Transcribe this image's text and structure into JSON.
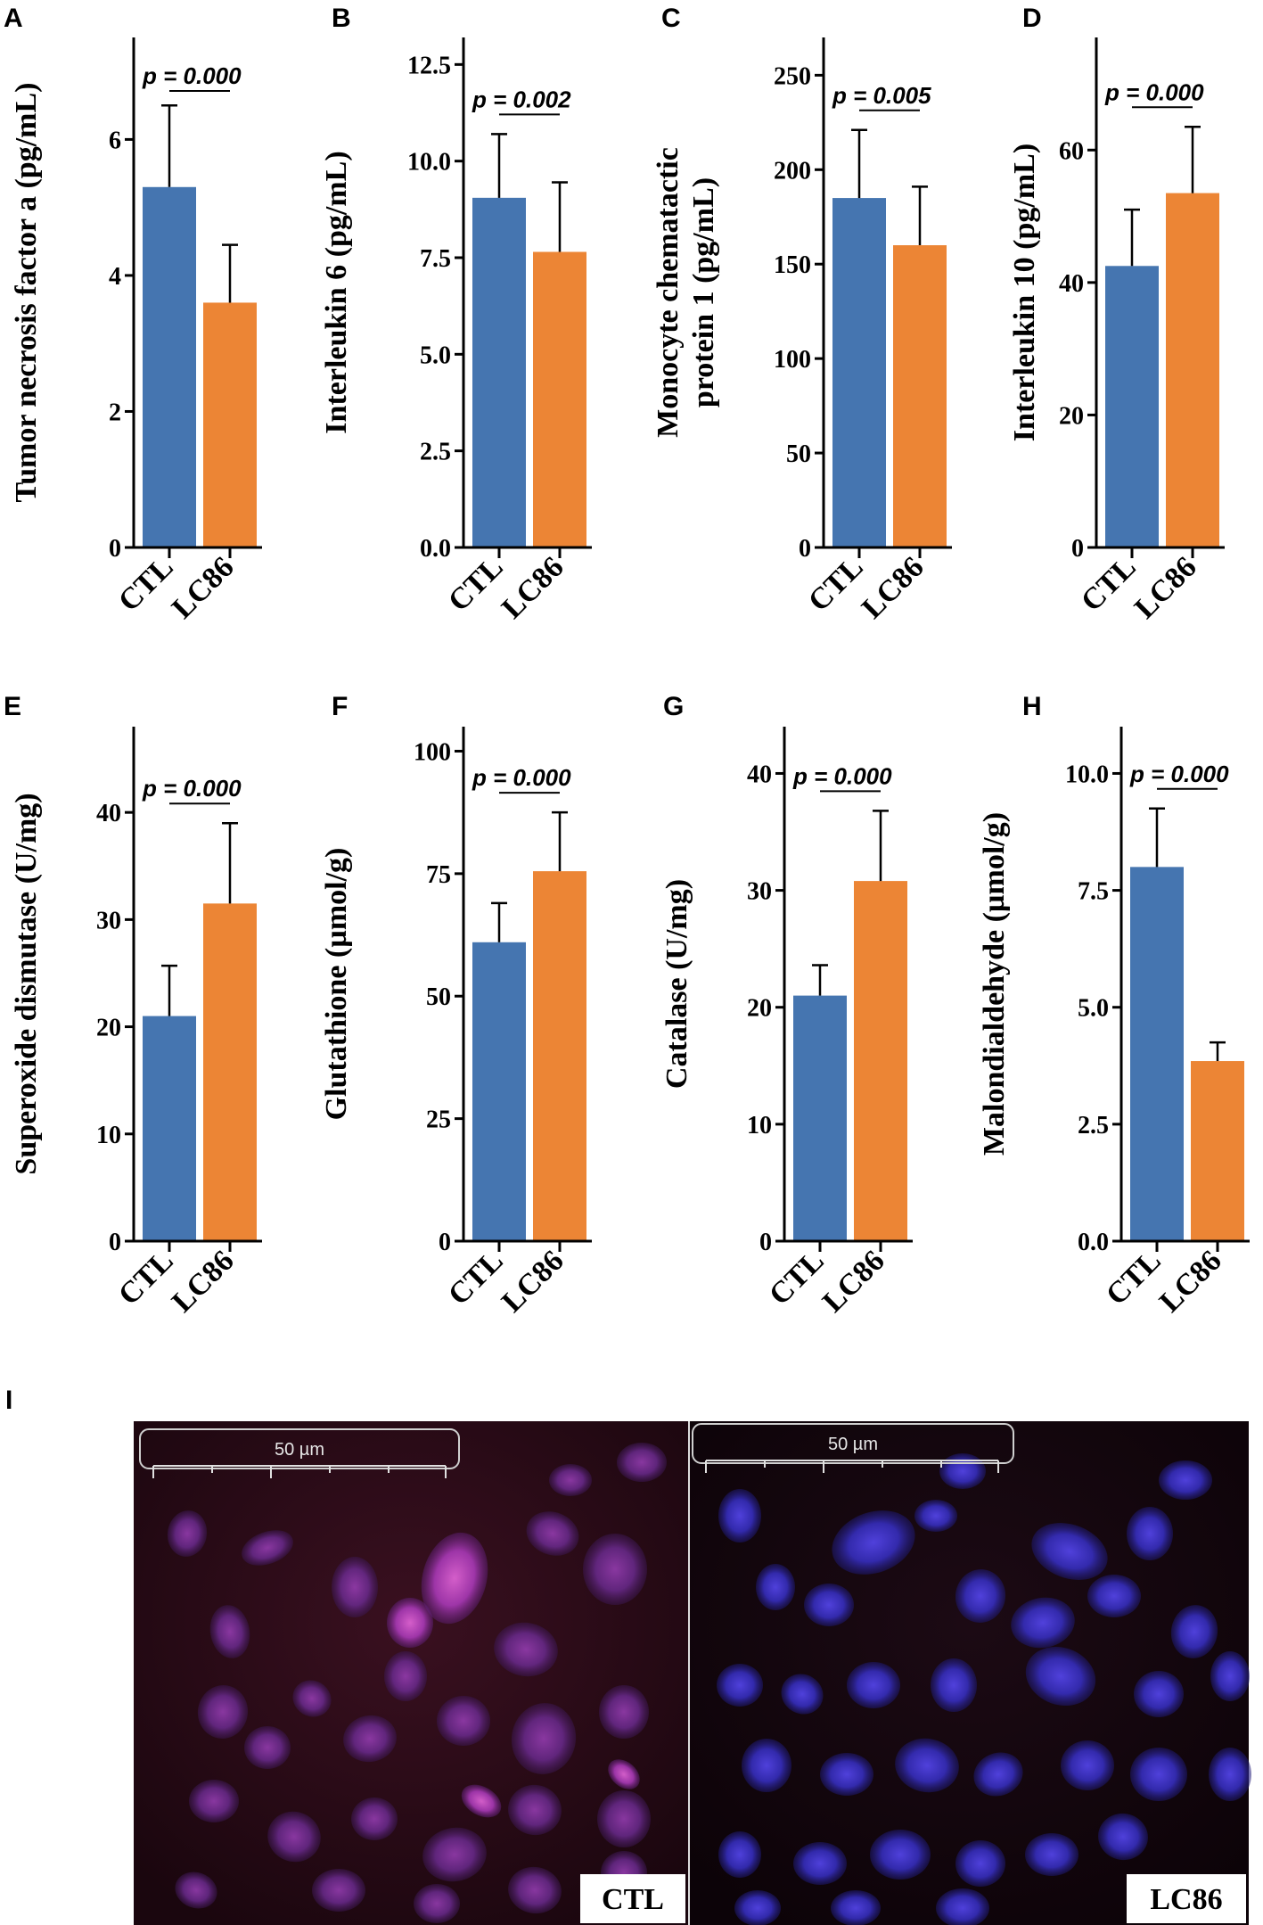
{
  "colors": {
    "ctl": "#4575b0",
    "lc86": "#ec8535"
  },
  "chart_data": [
    {
      "id": "A",
      "panel": "A",
      "type": "bar",
      "categories": [
        "CTL",
        "LC86"
      ],
      "values": [
        5.3,
        3.6
      ],
      "errors": [
        1.2,
        0.85
      ],
      "ylabel": "Tumor necrosis factor a (pg/mL)",
      "ylim": [
        0,
        7.5
      ],
      "ticks": [
        0,
        2,
        4,
        6
      ],
      "tick_labels": [
        "0",
        "2",
        "4",
        "6"
      ],
      "p_value": "p = 0.000"
    },
    {
      "id": "B",
      "panel": "B",
      "type": "bar",
      "categories": [
        "CTL",
        "LC86"
      ],
      "values": [
        9.05,
        7.65
      ],
      "errors": [
        1.65,
        1.8
      ],
      "ylabel": "Interleukin 6 (pg/mL)",
      "ylim": [
        0,
        13.2
      ],
      "ticks": [
        0,
        2.5,
        5,
        7.5,
        10,
        12.5
      ],
      "tick_labels": [
        "0.0",
        "2.5",
        "5.0",
        "7.5",
        "10.0",
        "12.5"
      ],
      "p_value": "p = 0.002"
    },
    {
      "id": "C",
      "panel": "C",
      "type": "bar",
      "categories": [
        "CTL",
        "LC86"
      ],
      "values": [
        185,
        160
      ],
      "errors": [
        36,
        31
      ],
      "ylabel": [
        "Monocyte chematactic",
        "protein 1 (pg/mL)"
      ],
      "ylim": [
        0,
        270
      ],
      "ticks": [
        0,
        50,
        100,
        150,
        200,
        250
      ],
      "tick_labels": [
        "0",
        "50",
        "100",
        "150",
        "200",
        "250"
      ],
      "p_value": "p = 0.005"
    },
    {
      "id": "D",
      "panel": "D",
      "type": "bar",
      "categories": [
        "CTL",
        "LC86"
      ],
      "values": [
        42.5,
        53.5
      ],
      "errors": [
        8.5,
        10
      ],
      "ylabel": "Interleukin 10 (pg/mL)",
      "ylim": [
        0,
        77
      ],
      "ticks": [
        0,
        20,
        40,
        60
      ],
      "tick_labels": [
        "0",
        "20",
        "40",
        "60"
      ],
      "p_value": "p = 0.000"
    },
    {
      "id": "E",
      "panel": "E",
      "type": "bar",
      "categories": [
        "CTL",
        "LC86"
      ],
      "values": [
        21,
        31.5
      ],
      "errors": [
        4.7,
        7.5
      ],
      "ylabel": "Superoxide dismutase (U/mg)",
      "ylim": [
        0,
        48
      ],
      "ticks": [
        0,
        10,
        20,
        30,
        40
      ],
      "tick_labels": [
        "0",
        "10",
        "20",
        "30",
        "40"
      ],
      "p_value": "p = 0.000"
    },
    {
      "id": "F",
      "panel": "F",
      "type": "bar",
      "categories": [
        "CTL",
        "LC86"
      ],
      "values": [
        61,
        75.5
      ],
      "errors": [
        8,
        12
      ],
      "ylabel": "Glutathione (µmol/g)",
      "ylim": [
        0,
        105
      ],
      "ticks": [
        0,
        25,
        50,
        75,
        100
      ],
      "tick_labels": [
        "0",
        "25",
        "50",
        "75",
        "100"
      ],
      "p_value": "p = 0.000"
    },
    {
      "id": "G",
      "panel": "G",
      "type": "bar",
      "categories": [
        "CTL",
        "LC86"
      ],
      "values": [
        21,
        30.8
      ],
      "errors": [
        2.6,
        6
      ],
      "ylabel": "Catalase (U/mg)",
      "ylim": [
        0,
        44
      ],
      "ticks": [
        0,
        10,
        20,
        30,
        40
      ],
      "tick_labels": [
        "0",
        "10",
        "20",
        "30",
        "40"
      ],
      "p_value": "p = 0.000"
    },
    {
      "id": "H",
      "panel": "H",
      "type": "bar",
      "categories": [
        "CTL",
        "LC86"
      ],
      "values": [
        8.0,
        3.85
      ],
      "errors": [
        1.25,
        0.4
      ],
      "ylabel": "Malondialdehyde (µmol/g)",
      "ylim": [
        0,
        11
      ],
      "ticks": [
        0,
        2.5,
        5,
        7.5,
        10
      ],
      "tick_labels": [
        "0.0",
        "2.5",
        "5.0",
        "7.5",
        "10.0"
      ],
      "p_value": "p = 0.000"
    }
  ],
  "micrograph": {
    "panel": "I",
    "left": {
      "scale_label": "50 µm",
      "label": "CTL"
    },
    "right": {
      "scale_label": "50 µm",
      "label": "LC86"
    }
  }
}
